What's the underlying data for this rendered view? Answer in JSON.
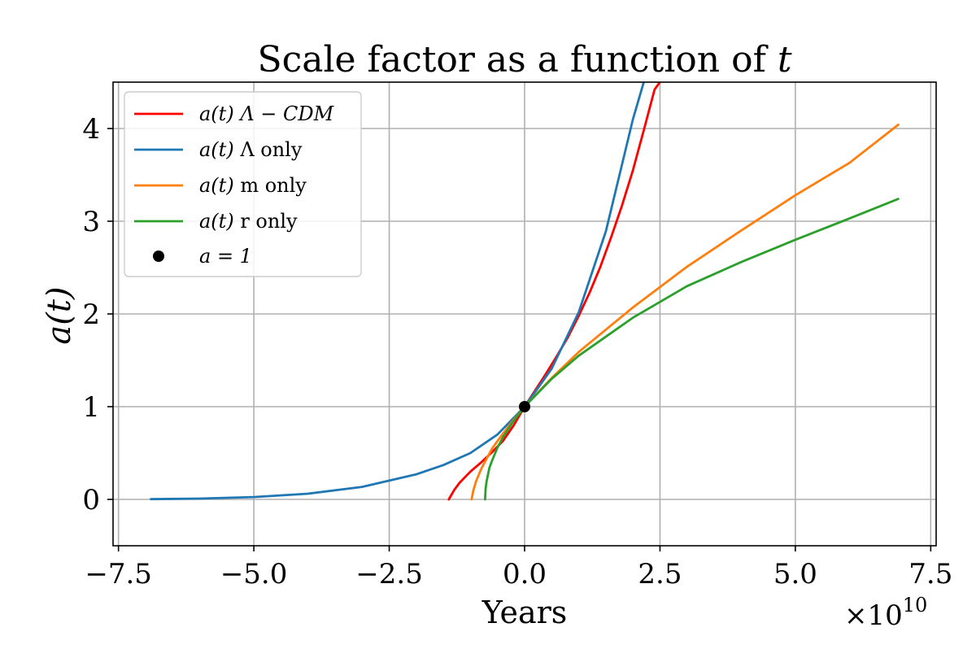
{
  "chart_data": {
    "type": "line",
    "title": {
      "text": "Scale factor as a function of",
      "variable": "t"
    },
    "xlabel": "Years",
    "ylabel": "a(t)",
    "x_offset": {
      "base": "×10",
      "exponent": "10"
    },
    "xlim": [
      -76000000000.0,
      76000000000.0
    ],
    "ylim": [
      -0.5,
      4.5
    ],
    "xticks": [
      {
        "value": -75000000000.0,
        "label": "−7.5"
      },
      {
        "value": -50000000000.0,
        "label": "−5.0"
      },
      {
        "value": -25000000000.0,
        "label": "−2.5"
      },
      {
        "value": 0.0,
        "label": "0.0"
      },
      {
        "value": 25000000000.0,
        "label": "2.5"
      },
      {
        "value": 50000000000.0,
        "label": "5.0"
      },
      {
        "value": 75000000000.0,
        "label": "7.5"
      }
    ],
    "yticks": [
      {
        "value": 0,
        "label": "0"
      },
      {
        "value": 1,
        "label": "1"
      },
      {
        "value": 2,
        "label": "2"
      },
      {
        "value": 3,
        "label": "3"
      },
      {
        "value": 4,
        "label": "4"
      }
    ],
    "grid": true,
    "legend_position": "upper-left",
    "series": [
      {
        "name": "a(t) Λ − CDM",
        "legend": {
          "prefix": "a(t)",
          "rest": "Λ − CDM",
          "rest_italic": true
        },
        "color": "#ff0000",
        "x": [
          -14000000000.0,
          -13000000000.0,
          -12000000000.0,
          -10000000000.0,
          -8000000000.0,
          -6000000000.0,
          -4000000000.0,
          -2000000000.0,
          0,
          2000000000.0,
          4000000000.0,
          6000000000.0,
          8000000000.0,
          10000000000.0,
          12000000000.0,
          14000000000.0,
          16000000000.0,
          18000000000.0,
          20000000000.0,
          22000000000.0,
          24000000000.0,
          25000000000.0
        ],
        "y": [
          0.0,
          0.1,
          0.18,
          0.3,
          0.4,
          0.51,
          0.63,
          0.8,
          1.0,
          1.18,
          1.36,
          1.55,
          1.75,
          1.98,
          2.23,
          2.51,
          2.83,
          3.17,
          3.55,
          3.98,
          4.42,
          4.5
        ]
      },
      {
        "name": "a(t) Λ only",
        "legend": {
          "prefix": "a(t)",
          "rest": "Λ only",
          "rest_italic": false
        },
        "color": "#1f77b4",
        "x": [
          -69000000000.0,
          -60000000000.0,
          -50000000000.0,
          -40000000000.0,
          -30000000000.0,
          -20000000000.0,
          -15000000000.0,
          -10000000000.0,
          -5000000000.0,
          0,
          5000000000.0,
          10000000000.0,
          15000000000.0,
          20000000000.0,
          22000000000.0
        ],
        "y": [
          0.003,
          0.009,
          0.025,
          0.061,
          0.135,
          0.27,
          0.37,
          0.5,
          0.7,
          1.0,
          1.41,
          2.02,
          2.89,
          4.1,
          4.5
        ]
      },
      {
        "name": "a(t) m only",
        "legend": {
          "prefix": "a(t)",
          "rest": "m only",
          "rest_italic": false
        },
        "color": "#ff7f0e",
        "x": [
          -9800000000.0,
          -9500000000.0,
          -9000000000.0,
          -8000000000.0,
          -6000000000.0,
          -4000000000.0,
          -2000000000.0,
          0,
          5000000000.0,
          10000000000.0,
          20000000000.0,
          30000000000.0,
          40000000000.0,
          50000000000.0,
          60000000000.0,
          69000000000.0
        ],
        "y": [
          0.0,
          0.09,
          0.19,
          0.33,
          0.55,
          0.71,
          0.86,
          1.0,
          1.31,
          1.59,
          2.07,
          2.51,
          2.9,
          3.28,
          3.63,
          4.04
        ]
      },
      {
        "name": "a(t) r only",
        "legend": {
          "prefix": "a(t)",
          "rest": "r only",
          "rest_italic": false
        },
        "color": "#2ca02c",
        "x": [
          -7300000000.0,
          -7200000000.0,
          -7000000000.0,
          -6500000000.0,
          -6000000000.0,
          -5000000000.0,
          -4000000000.0,
          -2000000000.0,
          0,
          5000000000.0,
          10000000000.0,
          20000000000.0,
          30000000000.0,
          40000000000.0,
          50000000000.0,
          60000000000.0,
          69000000000.0
        ],
        "y": [
          0.0,
          0.12,
          0.2,
          0.34,
          0.42,
          0.56,
          0.67,
          0.85,
          1.0,
          1.3,
          1.55,
          1.96,
          2.3,
          2.56,
          2.8,
          3.03,
          3.24
        ]
      }
    ],
    "points": [
      {
        "name": "a = 1",
        "legend": {
          "text": "a = 1"
        },
        "color": "#000000",
        "x": 0,
        "y": 1
      }
    ]
  }
}
